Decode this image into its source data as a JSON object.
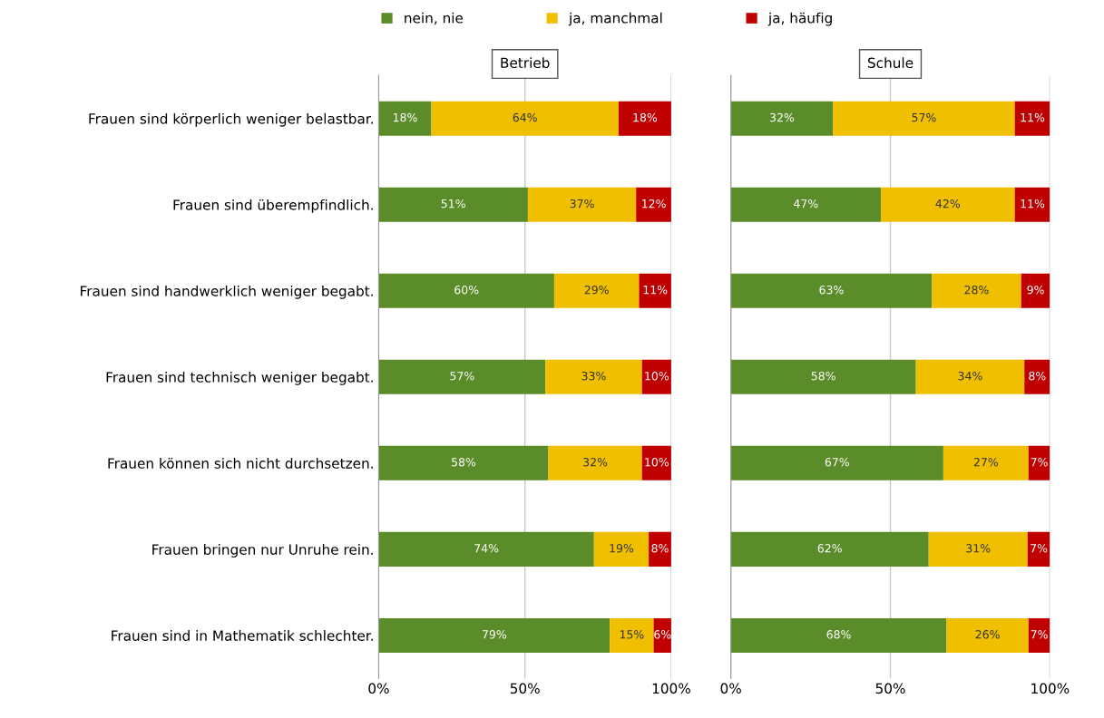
{
  "chart_data": [
    {
      "type": "bar",
      "orientation": "horizontal",
      "stacked": true,
      "title": "Betrieb",
      "legend": "top",
      "grid": "x",
      "xlim": [
        0,
        100
      ],
      "xticks": [
        {
          "value": 0,
          "label": "0%"
        },
        {
          "value": 50,
          "label": "50%"
        },
        {
          "value": 100,
          "label": "100%"
        }
      ],
      "categories": [
        "Frauen sind körperlich weniger belastbar.",
        "Frauen sind überempfindlich.",
        "Frauen sind handwerklich weniger begabt.",
        "Frauen sind technisch weniger begabt.",
        "Frauen können sich nicht durchsetzen.",
        "Frauen bringen nur Unruhe rein.",
        "Frauen sind in Mathematik schlechter."
      ],
      "series": [
        {
          "name": "nein, nie",
          "color": "#5b8c2a",
          "values": [
            18,
            51,
            60,
            57,
            58,
            73.6,
            79
          ],
          "value_labels": [
            "18%",
            "51%",
            "60%",
            "57%",
            "58%",
            "74%",
            "79%"
          ]
        },
        {
          "name": "ja, manchmal",
          "color": "#f0c000",
          "values": [
            64,
            37,
            29,
            33,
            32,
            18.7,
            15
          ],
          "value_labels": [
            "64%",
            "37%",
            "29%",
            "33%",
            "32%",
            "19%",
            "15%"
          ]
        },
        {
          "name": "ja, häufig",
          "color": "#c00000",
          "values": [
            18,
            12,
            11,
            10,
            10,
            7.7,
            6
          ],
          "value_labels": [
            "18%",
            "12%",
            "11%",
            "10%",
            "10%",
            "8%",
            "6%"
          ]
        }
      ]
    },
    {
      "type": "bar",
      "orientation": "horizontal",
      "stacked": true,
      "title": "Schule",
      "grid": "x",
      "tick_labels": "x",
      "xlim": [
        0,
        100
      ],
      "xticks": [
        {
          "value": 0,
          "label": "0%"
        },
        {
          "value": 50,
          "label": "50%"
        },
        {
          "value": 100,
          "label": "100%"
        }
      ],
      "categories": [
        null,
        null,
        null,
        null,
        null,
        null,
        null
      ],
      "series": [
        {
          "color": "#5b8c2a",
          "values": [
            32,
            47,
            63,
            58,
            66.6,
            62,
            67.6
          ],
          "value_labels": [
            "32%",
            "47%",
            "63%",
            "58%",
            "67%",
            "62%",
            "68%"
          ]
        },
        {
          "color": "#f0c000",
          "values": [
            57,
            42,
            28,
            34,
            26.7,
            31,
            25.7
          ],
          "value_labels": [
            "57%",
            "42%",
            "28%",
            "34%",
            "27%",
            "31%",
            "26%"
          ]
        },
        {
          "color": "#c00000",
          "values": [
            11,
            11,
            9,
            8,
            6.7,
            7,
            6.7
          ],
          "value_labels": [
            "11%",
            "11%",
            "9%",
            "8%",
            "7%",
            "7%",
            "7%"
          ]
        }
      ]
    }
  ]
}
